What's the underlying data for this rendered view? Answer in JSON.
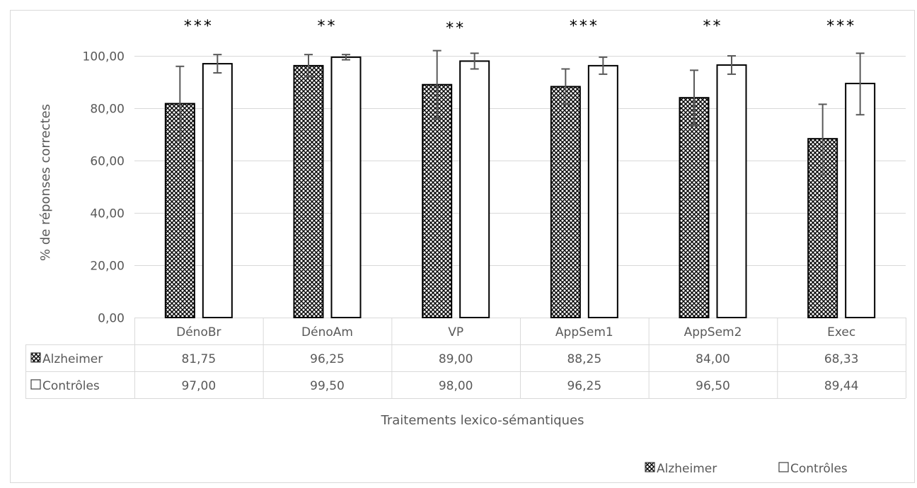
{
  "chart_data": {
    "type": "bar",
    "title": "",
    "xlabel": "Traitements lexico-sémantiques",
    "ylabel": "% de réponses correctes",
    "ylim": [
      0,
      100
    ],
    "y_ticks": [
      "0,00",
      "20,00",
      "40,00",
      "60,00",
      "80,00",
      "100,00"
    ],
    "y_tick_values": [
      0,
      20,
      40,
      60,
      80,
      100
    ],
    "categories": [
      "DénoBr",
      "DénoAm",
      "VP",
      "AppSem1",
      "AppSem2",
      "Exec"
    ],
    "series": [
      {
        "name": "Alzheimer",
        "pattern": "crosshatch",
        "values": [
          81.75,
          96.25,
          89.0,
          88.25,
          84.0,
          68.33
        ],
        "value_labels": [
          "81,75",
          "96,25",
          "89,00",
          "88,25",
          "84,00",
          "68,33"
        ],
        "err_low": [
          67.5,
          92.0,
          76.0,
          81.5,
          73.5,
          54.5
        ],
        "err_high": [
          96.0,
          100.5,
          102.0,
          95.0,
          94.5,
          81.5
        ]
      },
      {
        "name": "Contrôles",
        "pattern": "none",
        "values": [
          97.0,
          99.5,
          98.0,
          96.25,
          96.5,
          89.44
        ],
        "value_labels": [
          "97,00",
          "99,50",
          "98,00",
          "96,25",
          "96,50",
          "89,44"
        ],
        "err_low": [
          93.5,
          98.5,
          95.0,
          93.0,
          93.0,
          77.5
        ],
        "err_high": [
          100.5,
          100.5,
          101.0,
          99.5,
          100.0,
          101.0
        ]
      }
    ],
    "significance": [
      "***",
      "**",
      "**",
      "***",
      "**",
      "***"
    ],
    "legend": {
      "placement": "bottom-right",
      "items": [
        "Alzheimer",
        "Contrôles"
      ]
    },
    "grid": true
  },
  "colors": {
    "gridline": "#d9d9d9",
    "bar_border": "#000000",
    "error_bar": "#595959",
    "text": "#595959",
    "significance_text": "#000000"
  }
}
